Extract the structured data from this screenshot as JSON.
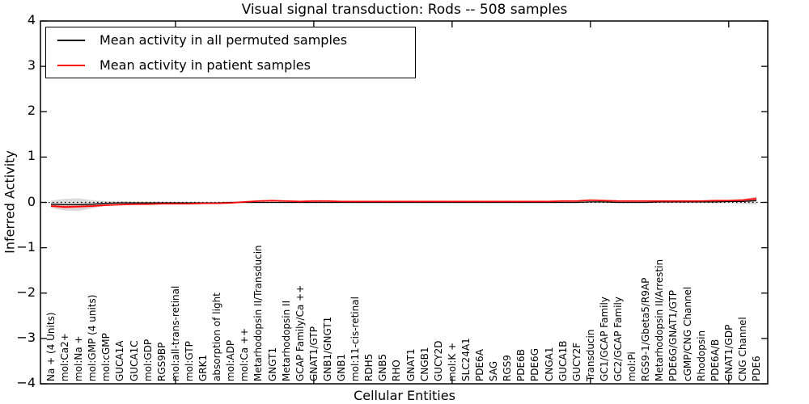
{
  "chart_data": {
    "type": "line",
    "title": "Visual signal transduction: Rods -- 508 samples",
    "xlabel": "Cellular Entities",
    "ylabel": "Inferred Activity",
    "ylim": [
      -4,
      4
    ],
    "yticks": [
      -4,
      -3,
      -2,
      -1,
      0,
      1,
      2,
      3,
      4
    ],
    "grid": false,
    "zero_line": {
      "style": "dotted",
      "color": "#000000"
    },
    "legend": {
      "position": "upper-left",
      "entries": [
        {
          "label": "Mean activity in all permuted samples",
          "color": "#000000"
        },
        {
          "label": "Mean activity in patient samples",
          "color": "#ff0000"
        }
      ]
    },
    "categories": [
      "Na + (4 Units)",
      "mol:Ca2+",
      "mol:Na +",
      "mol:GMP (4 units)",
      "mol:cGMP",
      "GUCA1A",
      "GUCA1C",
      "mol:GDP",
      "RGS9BP",
      "mol:all-trans-retinal",
      "mol:GTP",
      "GRK1",
      "absorption of light",
      "mol:ADP",
      "mol:Ca ++",
      "Metarhodopsin II/Transducin",
      "GNGT1",
      "Metarhodopsin II",
      "GCAP Family/Ca ++",
      "GNAT1/GTP",
      "GNB1/GNGT1",
      "GNB1",
      "mol:11-cis-retinal",
      "RDH5",
      "GNB5",
      "RHO",
      "GNAT1",
      "CNGB1",
      "GUCY2D",
      "mol:K +",
      "SLC24A1",
      "PDE6A",
      "SAG",
      "RGS9",
      "PDE6B",
      "PDE6G",
      "CNGA1",
      "GUCA1B",
      "GUCY2F",
      "Transducin",
      "GC1/GCAP Family",
      "GC2/GCAP Family",
      "mol:Pi",
      "RGS9-1/Gbeta5/R9AP",
      "Metarhodopsin II/Arrestin",
      "PDE6G/GNAT1/GTP",
      "cGMP/CNG Channel",
      "Rhodopsin",
      "PDE6A/B",
      "GNAT1/GDP",
      "CNG Channel",
      "PDE6"
    ],
    "series": [
      {
        "name": "Mean activity in all permuted samples",
        "color": "#000000",
        "band_color": "#b0b0b0",
        "values": [
          -0.04,
          -0.05,
          -0.05,
          -0.04,
          -0.02,
          -0.01,
          -0.01,
          -0.01,
          -0.01,
          -0.01,
          -0.01,
          -0.01,
          -0.01,
          0,
          0,
          0,
          0,
          0,
          0,
          0,
          0,
          0,
          0,
          0,
          0,
          0,
          0,
          0,
          0,
          0,
          0,
          0,
          0,
          0,
          0,
          0,
          0,
          0,
          0,
          0.01,
          0.01,
          0,
          0,
          0,
          0.01,
          0.01,
          0.01,
          0.01,
          0.01,
          0.02,
          0.02,
          0.04
        ],
        "band": [
          0.08,
          0.13,
          0.14,
          0.09,
          0.05,
          0.04,
          0.03,
          0.03,
          0.03,
          0.02,
          0.02,
          0.02,
          0.02,
          0.02,
          0.015,
          0.015,
          0.015,
          0.015,
          0.015,
          0.015,
          0.015,
          0.015,
          0.015,
          0.015,
          0.015,
          0.015,
          0.015,
          0.015,
          0.015,
          0.015,
          0.015,
          0.015,
          0.015,
          0.015,
          0.015,
          0.015,
          0.015,
          0.015,
          0.015,
          0.02,
          0.02,
          0.015,
          0.015,
          0.015,
          0.02,
          0.02,
          0.02,
          0.025,
          0.03,
          0.035,
          0.05,
          0.09
        ]
      },
      {
        "name": "Mean activity in patient samples",
        "color": "#ff0000",
        "band_color": "#ff8080",
        "values": [
          -0.08,
          -0.1,
          -0.09,
          -0.08,
          -0.06,
          -0.05,
          -0.04,
          -0.04,
          -0.03,
          -0.03,
          -0.03,
          -0.02,
          -0.02,
          -0.01,
          0.01,
          0.03,
          0.04,
          0.03,
          0.02,
          0.03,
          0.03,
          0.02,
          0.02,
          0.02,
          0.02,
          0.02,
          0.02,
          0.02,
          0.02,
          0.02,
          0.02,
          0.02,
          0.02,
          0.02,
          0.02,
          0.02,
          0.02,
          0.03,
          0.03,
          0.05,
          0.04,
          0.03,
          0.03,
          0.03,
          0.03,
          0.03,
          0.03,
          0.03,
          0.04,
          0.04,
          0.05,
          0.08
        ],
        "band": [
          0.03,
          0.04,
          0.04,
          0.03,
          0.02,
          0.02,
          0.02,
          0.02,
          0.015,
          0.015,
          0.015,
          0.015,
          0.015,
          0.015,
          0.015,
          0.02,
          0.02,
          0.015,
          0.015,
          0.02,
          0.015,
          0.015,
          0.015,
          0.015,
          0.015,
          0.015,
          0.015,
          0.015,
          0.015,
          0.015,
          0.015,
          0.015,
          0.015,
          0.015,
          0.015,
          0.015,
          0.015,
          0.015,
          0.015,
          0.02,
          0.02,
          0.015,
          0.015,
          0.015,
          0.015,
          0.015,
          0.015,
          0.015,
          0.02,
          0.02,
          0.025,
          0.04
        ]
      }
    ]
  }
}
